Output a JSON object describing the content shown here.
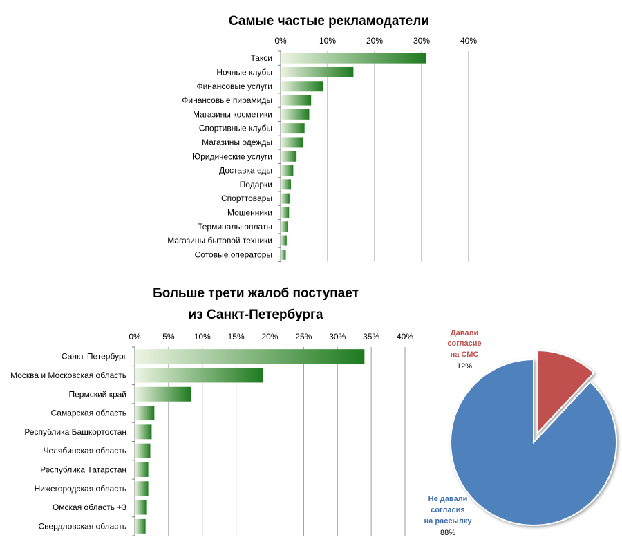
{
  "chart_data": [
    {
      "type": "bar",
      "orientation": "horizontal",
      "title": "Самые частые рекламодатели",
      "categories": [
        "Такси",
        "Ночные клубы",
        "Финансовые услуги",
        "Финансовые пирамиды",
        "Магазины косметики",
        "Спортивные клубы",
        "Магазины одежды",
        "Юридические  услуги",
        "Доставка еды",
        "Подарки",
        "Спорттовары",
        "Мошенники",
        "Терминалы оплаты",
        "Магазины бытовой техники",
        "Сотовые операторы"
      ],
      "values": [
        0.31,
        0.155,
        0.09,
        0.065,
        0.061,
        0.051,
        0.048,
        0.034,
        0.027,
        0.022,
        0.019,
        0.018,
        0.016,
        0.013,
        0.011
      ],
      "xlim": [
        0,
        0.4
      ],
      "xticks": [
        0,
        0.1,
        0.2,
        0.3,
        0.4
      ],
      "xtick_labels": [
        "0%",
        "10%",
        "20%",
        "30%",
        "40%"
      ],
      "axis_position": "top",
      "grid": true,
      "bar_gradient": [
        "#e6f0da",
        "#1e7a1e"
      ]
    },
    {
      "type": "bar",
      "orientation": "horizontal",
      "title": [
        "Больше трети жалоб поступает",
        "из Санкт-Петербурга"
      ],
      "categories": [
        "Санкт-Петербург",
        "Москва и Московская область",
        "Пермский край",
        "Самарская область",
        "Республика Башкортостан",
        "Челябинская область",
        "Республика Татарстан",
        "Нижегородская область",
        "Омская область +3",
        "Свердловская область"
      ],
      "values": [
        0.34,
        0.19,
        0.083,
        0.029,
        0.025,
        0.023,
        0.02,
        0.02,
        0.017,
        0.016
      ],
      "xlim": [
        0,
        0.4
      ],
      "xticks": [
        0,
        0.05,
        0.1,
        0.15,
        0.2,
        0.25,
        0.3,
        0.35,
        0.4
      ],
      "xtick_labels": [
        "0%",
        "5%",
        "10%",
        "15%",
        "20%",
        "25%",
        "30%",
        "35%",
        "40%"
      ],
      "axis_position": "top",
      "grid": true,
      "bar_gradient": [
        "#e6f0da",
        "#1e7a1e"
      ]
    },
    {
      "type": "pie",
      "slices": [
        {
          "label": [
            "Давали",
            "согласие",
            "на СМС"
          ],
          "value": 0.12,
          "value_label": "12%",
          "color": "#c0504d",
          "label_color": "#c0504d",
          "exploded": true
        },
        {
          "label": [
            "Не давали",
            "согласия",
            "на рассылку"
          ],
          "value": 0.88,
          "value_label": "88%",
          "color": "#4f81bd",
          "label_color": "#3f6fae",
          "exploded": false
        }
      ]
    }
  ]
}
